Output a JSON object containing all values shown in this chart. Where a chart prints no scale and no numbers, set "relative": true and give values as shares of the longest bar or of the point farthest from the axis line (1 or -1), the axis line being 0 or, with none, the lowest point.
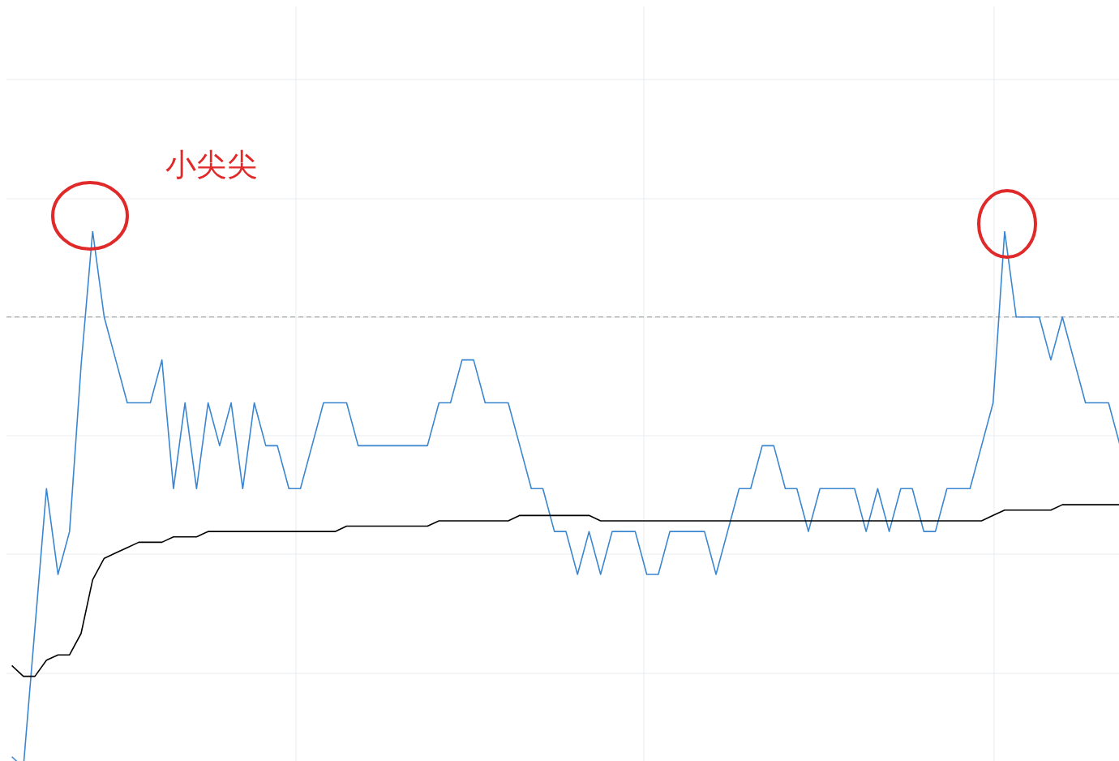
{
  "chart_data": {
    "type": "line",
    "relative": true,
    "grid": true,
    "marker": "none",
    "categories": [
      null,
      null,
      null,
      null,
      null,
      null,
      null,
      null,
      null,
      null,
      null,
      null,
      null,
      null,
      null,
      null,
      null,
      null,
      null,
      null,
      null,
      null,
      null,
      null,
      null,
      null,
      null,
      null,
      null,
      null,
      null,
      null,
      null,
      null,
      null,
      null,
      null,
      null,
      null,
      null,
      null,
      null,
      null,
      null,
      null,
      null,
      null,
      null,
      null,
      null,
      null,
      null,
      null,
      null,
      null,
      null,
      null,
      null,
      null,
      null,
      null,
      null,
      null,
      null,
      null,
      null,
      null,
      null,
      null,
      null,
      null,
      null,
      null,
      null,
      null,
      null,
      null,
      null,
      null,
      null,
      null,
      null,
      null,
      null,
      null,
      null,
      null,
      null,
      null,
      null,
      null,
      null,
      null,
      null,
      null,
      null,
      null
    ],
    "series": [
      {
        "color": "#3a86d0",
        "values": [
          0.02,
          0,
          0.26,
          0.52,
          0.36,
          0.44,
          0.75,
          1,
          0.84,
          0.76,
          0.68,
          0.68,
          0.68,
          0.76,
          0.52,
          0.68,
          0.52,
          0.68,
          0.6,
          0.68,
          0.52,
          0.68,
          0.6,
          0.6,
          0.52,
          0.52,
          0.6,
          0.68,
          0.68,
          0.68,
          0.6,
          0.6,
          0.6,
          0.6,
          0.6,
          0.6,
          0.6,
          0.68,
          0.68,
          0.76,
          0.76,
          0.68,
          0.68,
          0.68,
          0.6,
          0.52,
          0.52,
          0.44,
          0.44,
          0.36,
          0.44,
          0.36,
          0.44,
          0.44,
          0.44,
          0.36,
          0.36,
          0.44,
          0.44,
          0.44,
          0.44,
          0.36,
          0.44,
          0.52,
          0.52,
          0.6,
          0.6,
          0.52,
          0.52,
          0.44,
          0.52,
          0.52,
          0.52,
          0.52,
          0.44,
          0.52,
          0.44,
          0.52,
          0.52,
          0.44,
          0.44,
          0.52,
          0.52,
          0.52,
          0.6,
          0.68,
          1,
          0.84,
          0.84,
          0.84,
          0.76,
          0.84,
          0.76,
          0.68,
          0.68,
          0.68,
          0.6
        ]
      },
      {
        "color": "#000000",
        "values": [
          0.19,
          0.17,
          0.17,
          0.2,
          0.21,
          0.21,
          0.25,
          0.35,
          0.39,
          0.4,
          0.41,
          0.42,
          0.42,
          0.42,
          0.43,
          0.43,
          0.43,
          0.44,
          0.44,
          0.44,
          0.44,
          0.44,
          0.44,
          0.44,
          0.44,
          0.44,
          0.44,
          0.44,
          0.44,
          0.45,
          0.45,
          0.45,
          0.45,
          0.45,
          0.45,
          0.45,
          0.45,
          0.46,
          0.46,
          0.46,
          0.46,
          0.46,
          0.46,
          0.46,
          0.47,
          0.47,
          0.47,
          0.47,
          0.47,
          0.47,
          0.47,
          0.46,
          0.46,
          0.46,
          0.46,
          0.46,
          0.46,
          0.46,
          0.46,
          0.46,
          0.46,
          0.46,
          0.46,
          0.46,
          0.46,
          0.46,
          0.46,
          0.46,
          0.46,
          0.46,
          0.46,
          0.46,
          0.46,
          0.46,
          0.46,
          0.46,
          0.46,
          0.46,
          0.46,
          0.46,
          0.46,
          0.46,
          0.46,
          0.46,
          0.46,
          0.47,
          0.48,
          0.48,
          0.48,
          0.48,
          0.48,
          0.49,
          0.49,
          0.49,
          0.49,
          0.49,
          0.49
        ]
      }
    ],
    "ref_lines": [
      {
        "axis": "y",
        "value": 0.84,
        "color": "#999999",
        "line_style": "dashed"
      }
    ],
    "annotations": [
      "小尖尖"
    ]
  }
}
